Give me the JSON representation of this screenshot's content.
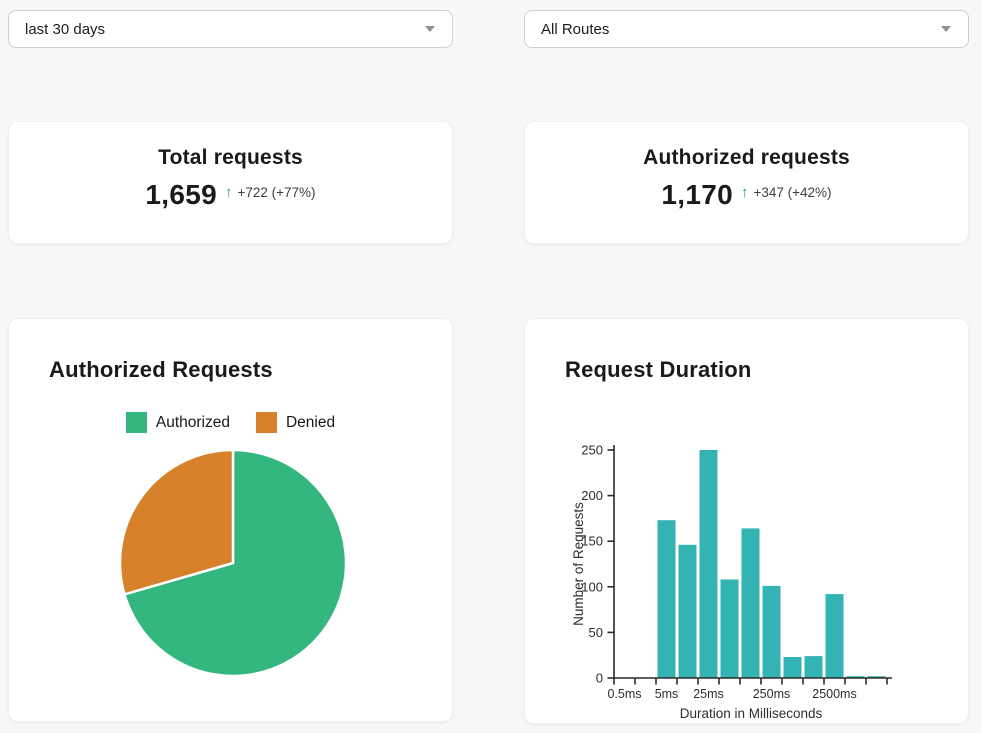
{
  "filters": {
    "time_range": {
      "value": "last 30 days"
    },
    "routes": {
      "value": "All Routes"
    }
  },
  "stats": [
    {
      "title": "Total requests",
      "value": "1,659",
      "arrow": "↑",
      "delta": "+722 (+77%)"
    },
    {
      "title": "Authorized requests",
      "value": "1,170",
      "arrow": "↑",
      "delta": "+347 (+42%)"
    }
  ],
  "colors": {
    "authorized_green": "#34b67f",
    "denied_orange": "#d7822a",
    "bar_teal": "#33b3b3",
    "delta_arrow_green": "#2f9e6a",
    "page_background": "#f7f7f8",
    "card_background": "#ffffff"
  },
  "chart_data": [
    {
      "type": "pie",
      "title": "Authorized Requests",
      "labels": [
        "Authorized",
        "Denied"
      ],
      "values": [
        1170,
        489
      ],
      "colors": [
        "#34b67f",
        "#d7822a"
      ],
      "legend_position": "top",
      "start_angle_deg": 0,
      "direction": "clockwise"
    },
    {
      "type": "bar",
      "title": "Request Duration",
      "xlabel": "Duration in Milliseconds",
      "ylabel": "Number of Requests",
      "ylim": [
        0,
        250
      ],
      "yticks": [
        0,
        50,
        100,
        150,
        200,
        250
      ],
      "values": [
        0,
        0,
        173,
        146,
        250,
        108,
        164,
        101,
        23,
        24,
        92,
        2,
        2
      ],
      "x_tick_labels": [
        {
          "label": "0.5ms",
          "bin": 0
        },
        {
          "label": "5ms",
          "bin": 2
        },
        {
          "label": "25ms",
          "bin": 4
        },
        {
          "label": "250ms",
          "bin": 7
        },
        {
          "label": "2500ms",
          "bin": 10
        }
      ],
      "bar_color": "#33b3b3",
      "grid": false
    }
  ]
}
